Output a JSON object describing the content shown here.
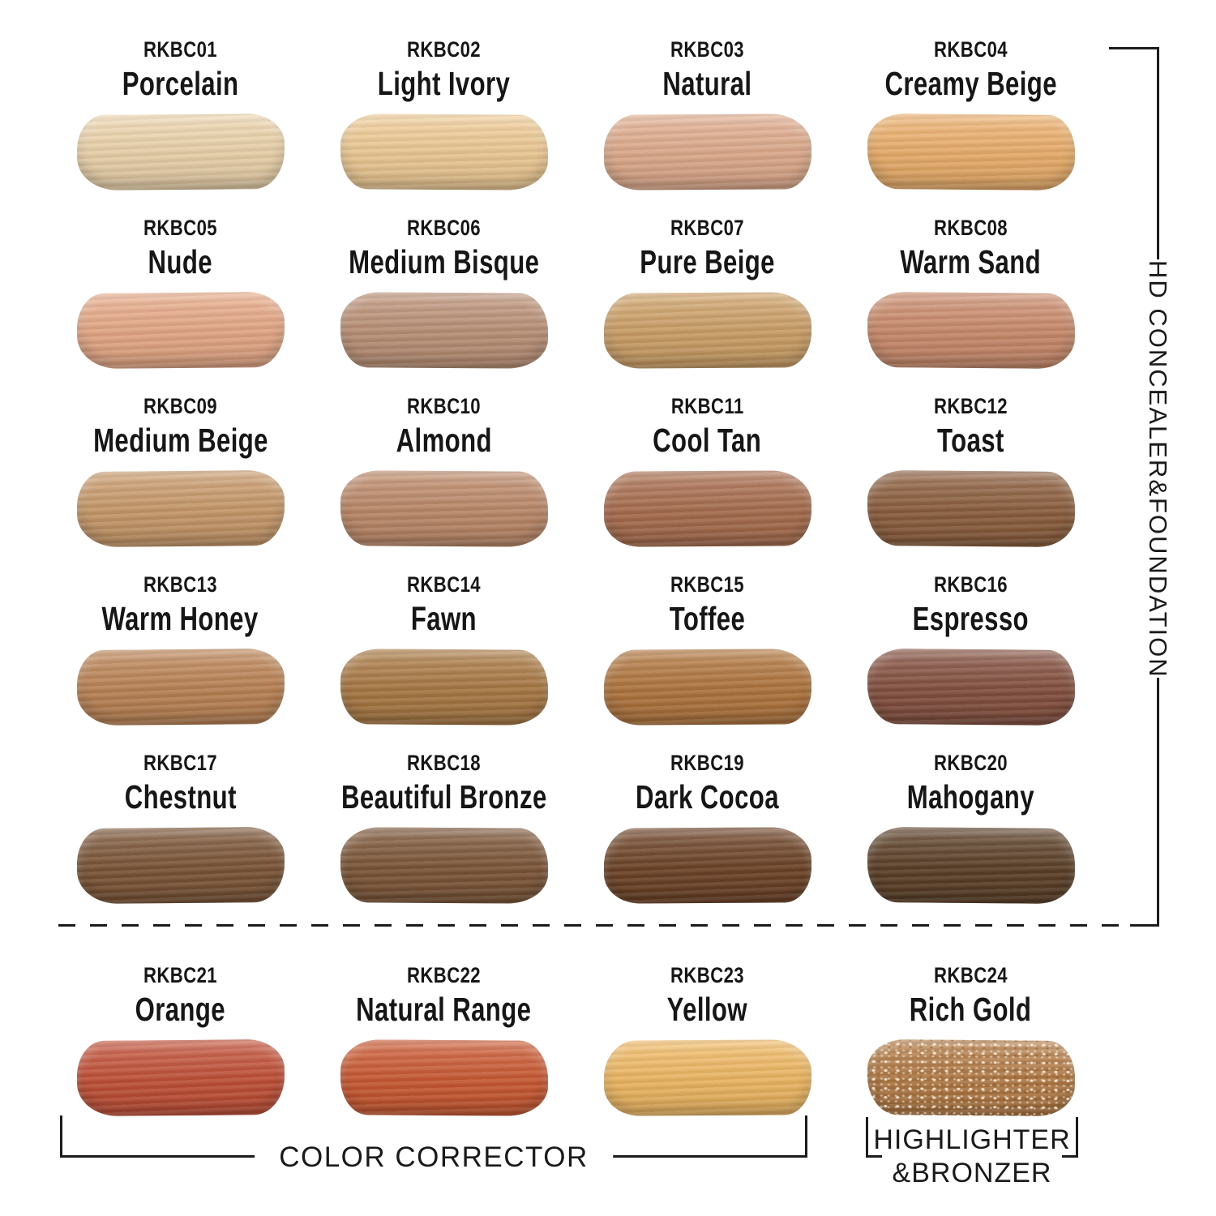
{
  "right_group": {
    "label": "HD CONCEALER&FOUNDATION"
  },
  "bottom_groups": {
    "color_corrector": "COLOR CORRECTOR",
    "highlighter_line1": "HIGHLIGHTER",
    "highlighter_line2": "&BRONZER"
  },
  "swatches": [
    {
      "code": "RKBC01",
      "name": "Porcelain",
      "color": "#EDD4AC",
      "finish": "cream"
    },
    {
      "code": "RKBC02",
      "name": "Light Ivory",
      "color": "#EFCB95",
      "finish": "cream"
    },
    {
      "code": "RKBC03",
      "name": "Natural",
      "color": "#E0AC8D",
      "finish": "cream"
    },
    {
      "code": "RKBC04",
      "name": "Creamy Beige",
      "color": "#ECAF6C",
      "finish": "cream"
    },
    {
      "code": "RKBC05",
      "name": "Nude",
      "color": "#E7A987",
      "finish": "cream"
    },
    {
      "code": "RKBC06",
      "name": "Medium Bisque",
      "color": "#BC9278",
      "finish": "cream"
    },
    {
      "code": "RKBC07",
      "name": "Pure Beige",
      "color": "#CEA168",
      "finish": "cream"
    },
    {
      "code": "RKBC08",
      "name": "Warm Sand",
      "color": "#CB8C6D",
      "finish": "cream"
    },
    {
      "code": "RKBC09",
      "name": "Medium Beige",
      "color": "#C99A6B",
      "finish": "cream"
    },
    {
      "code": "RKBC10",
      "name": "Almond",
      "color": "#BD8A6A",
      "finish": "cream"
    },
    {
      "code": "RKBC11",
      "name": "Cool Tan",
      "color": "#A96E4F",
      "finish": "cream"
    },
    {
      "code": "RKBC12",
      "name": "Toast",
      "color": "#8D5F3F",
      "finish": "cream"
    },
    {
      "code": "RKBC13",
      "name": "Warm Honey",
      "color": "#BC8456",
      "finish": "cream"
    },
    {
      "code": "RKBC14",
      "name": "Fawn",
      "color": "#AA7A45",
      "finish": "cream"
    },
    {
      "code": "RKBC15",
      "name": "Toffee",
      "color": "#B1763F",
      "finish": "cream"
    },
    {
      "code": "RKBC16",
      "name": "Espresso",
      "color": "#855140",
      "finish": "cream"
    },
    {
      "code": "RKBC17",
      "name": "Chestnut",
      "color": "#7C5638",
      "finish": "cream"
    },
    {
      "code": "RKBC18",
      "name": "Beautiful Bronze",
      "color": "#7D5739",
      "finish": "cream"
    },
    {
      "code": "RKBC19",
      "name": "Dark Cocoa",
      "color": "#6E4428",
      "finish": "cream"
    },
    {
      "code": "RKBC20",
      "name": "Mahogany",
      "color": "#5D4129",
      "finish": "cream"
    },
    {
      "code": "RKBC21",
      "name": "Orange",
      "color": "#C25138",
      "finish": "cream"
    },
    {
      "code": "RKBC22",
      "name": "Natural Range",
      "color": "#CB5A33",
      "finish": "cream"
    },
    {
      "code": "RKBC23",
      "name": "Yellow",
      "color": "#F0B964",
      "finish": "cream"
    },
    {
      "code": "RKBC24",
      "name": "Rich Gold",
      "color": "#B27A45",
      "finish": "shimmer"
    }
  ]
}
